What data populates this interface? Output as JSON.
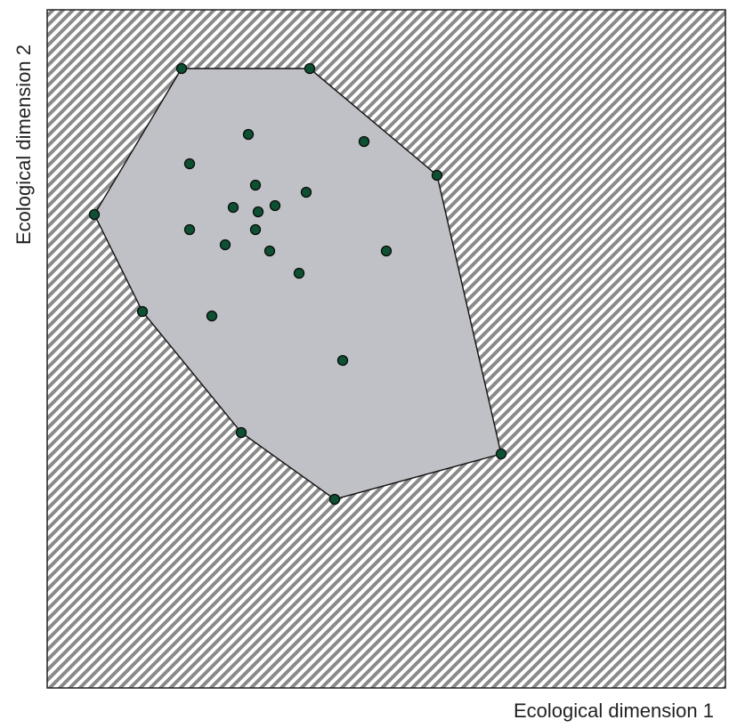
{
  "chart_data": {
    "type": "scatter",
    "xlabel": "Ecological dimension 1",
    "ylabel": "Ecological dimension 2",
    "hull": [
      [
        204,
        77
      ],
      [
        348,
        77
      ],
      [
        491,
        197
      ],
      [
        563,
        510
      ],
      [
        376,
        561
      ],
      [
        271,
        486
      ],
      [
        160,
        350
      ],
      [
        106,
        241
      ]
    ],
    "interior_points": [
      [
        279,
        151
      ],
      [
        409,
        159
      ],
      [
        213,
        184
      ],
      [
        287,
        208
      ],
      [
        344,
        216
      ],
      [
        262,
        233
      ],
      [
        290,
        238
      ],
      [
        309,
        231
      ],
      [
        213,
        258
      ],
      [
        287,
        258
      ],
      [
        253,
        275
      ],
      [
        303,
        282
      ],
      [
        434,
        282
      ],
      [
        336,
        307
      ],
      [
        238,
        355
      ],
      [
        385,
        405
      ]
    ],
    "x_domain": [
      53,
      815
    ],
    "y_domain": [
      11,
      773
    ],
    "colors": {
      "hull_fill": "#c0c1c6",
      "point_fill": "#0d5132",
      "hatch": "#8a8a8a",
      "frame": "#222222"
    }
  }
}
